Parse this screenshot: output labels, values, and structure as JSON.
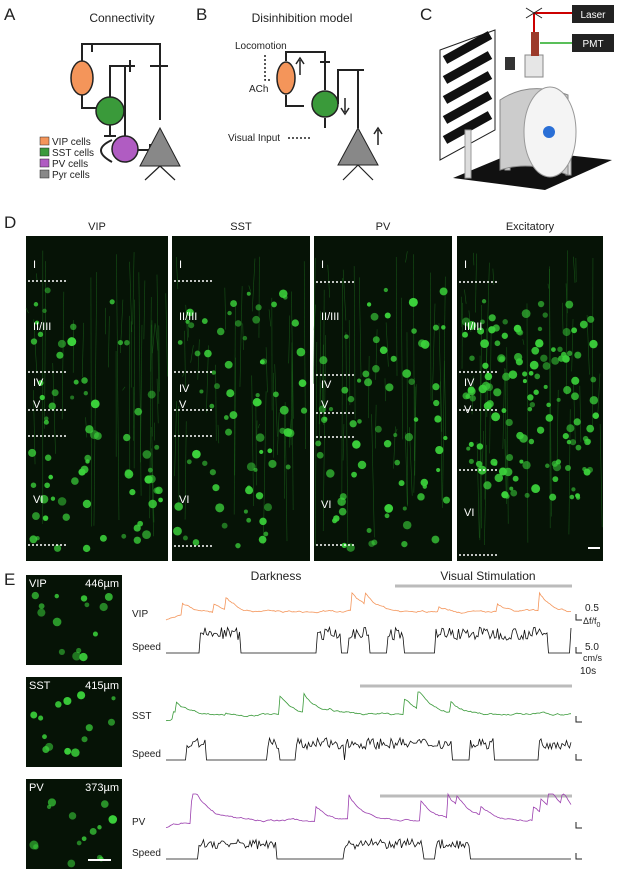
{
  "panels": {
    "a": {
      "letter": "A",
      "title": "Connectivity",
      "legend": [
        "VIP cells",
        "SST cells",
        "PV cells",
        "Pyr cells"
      ]
    },
    "b": {
      "letter": "B",
      "title": "Disinhibition model",
      "locomotion": "Locomotion",
      "ach": "ACh",
      "visual_input": "Visual Input"
    },
    "c": {
      "letter": "C",
      "laser": "Laser",
      "pmt": "PMT"
    },
    "d": {
      "letter": "D",
      "images": [
        {
          "title": "VIP",
          "layers": [
            "I",
            "II/III",
            "IV",
            "V",
            "VI"
          ]
        },
        {
          "title": "SST",
          "layers": [
            "I",
            "II/III",
            "IV",
            "V",
            "VI"
          ]
        },
        {
          "title": "PV",
          "layers": [
            "I",
            "II/III",
            "IV",
            "V",
            "VI"
          ]
        },
        {
          "title": "Excitatory",
          "layers": [
            "I",
            "II/III",
            "IV",
            "V",
            "VI"
          ]
        }
      ]
    },
    "e": {
      "letter": "E",
      "images": [
        {
          "label": "VIP",
          "depth": "446µm"
        },
        {
          "label": "SST",
          "depth": "415µm"
        },
        {
          "label": "PV",
          "depth": "373µm"
        }
      ],
      "darkness": "Darkness",
      "visual_stimulation": "Visual Stimulation",
      "rows": [
        "VIP",
        "Speed",
        "SST",
        "Speed",
        "PV",
        "Speed"
      ],
      "scale": {
        "df": "0.5",
        "df_unit": "Δf/f",
        "df_sub": "0",
        "speed": "5.0",
        "speed_unit": "cm/s",
        "time": "10s"
      }
    }
  }
}
